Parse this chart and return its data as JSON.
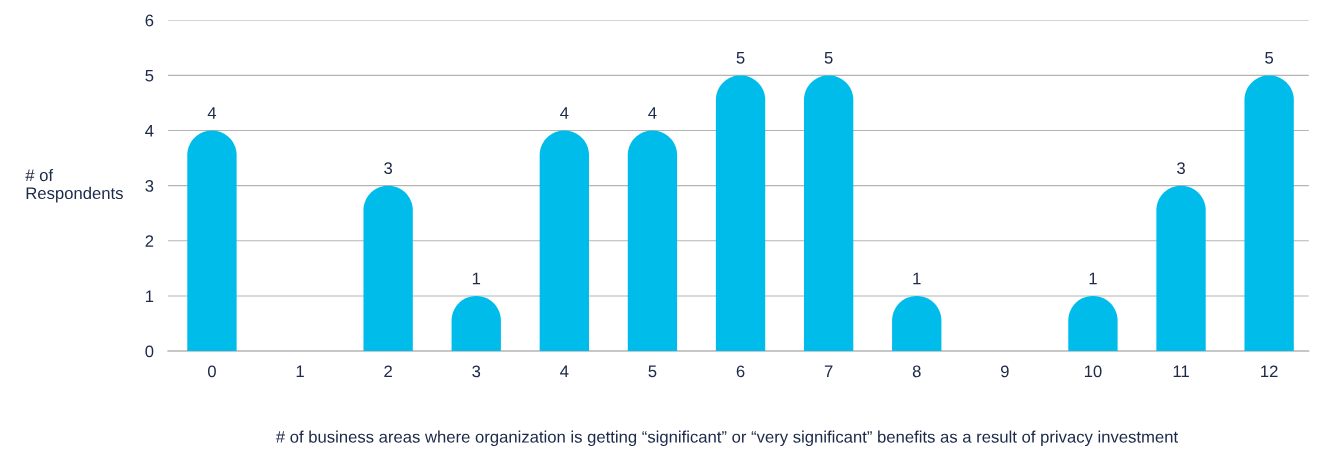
{
  "chart_data": {
    "type": "bar",
    "xlabel": "# of business areas where organization is getting “significant” or “very significant” benefits as a result of privacy investment",
    "ylabel": "# of\nRespondents",
    "categories": [
      "0",
      "1",
      "2",
      "3",
      "4",
      "5",
      "6",
      "7",
      "8",
      "9",
      "10",
      "11",
      "12"
    ],
    "values": [
      4,
      0,
      3,
      1,
      4,
      4,
      5,
      5,
      1,
      0,
      1,
      3,
      5
    ],
    "value_labels": [
      "4",
      null,
      "3",
      "1",
      "4",
      "4",
      "5",
      "5",
      "1",
      null,
      "1",
      "3",
      "5"
    ],
    "color": "#00bceb",
    "ylim": [
      0,
      6
    ],
    "yticks": [
      0,
      1,
      2,
      3,
      4,
      5,
      6
    ],
    "grid": "y"
  }
}
